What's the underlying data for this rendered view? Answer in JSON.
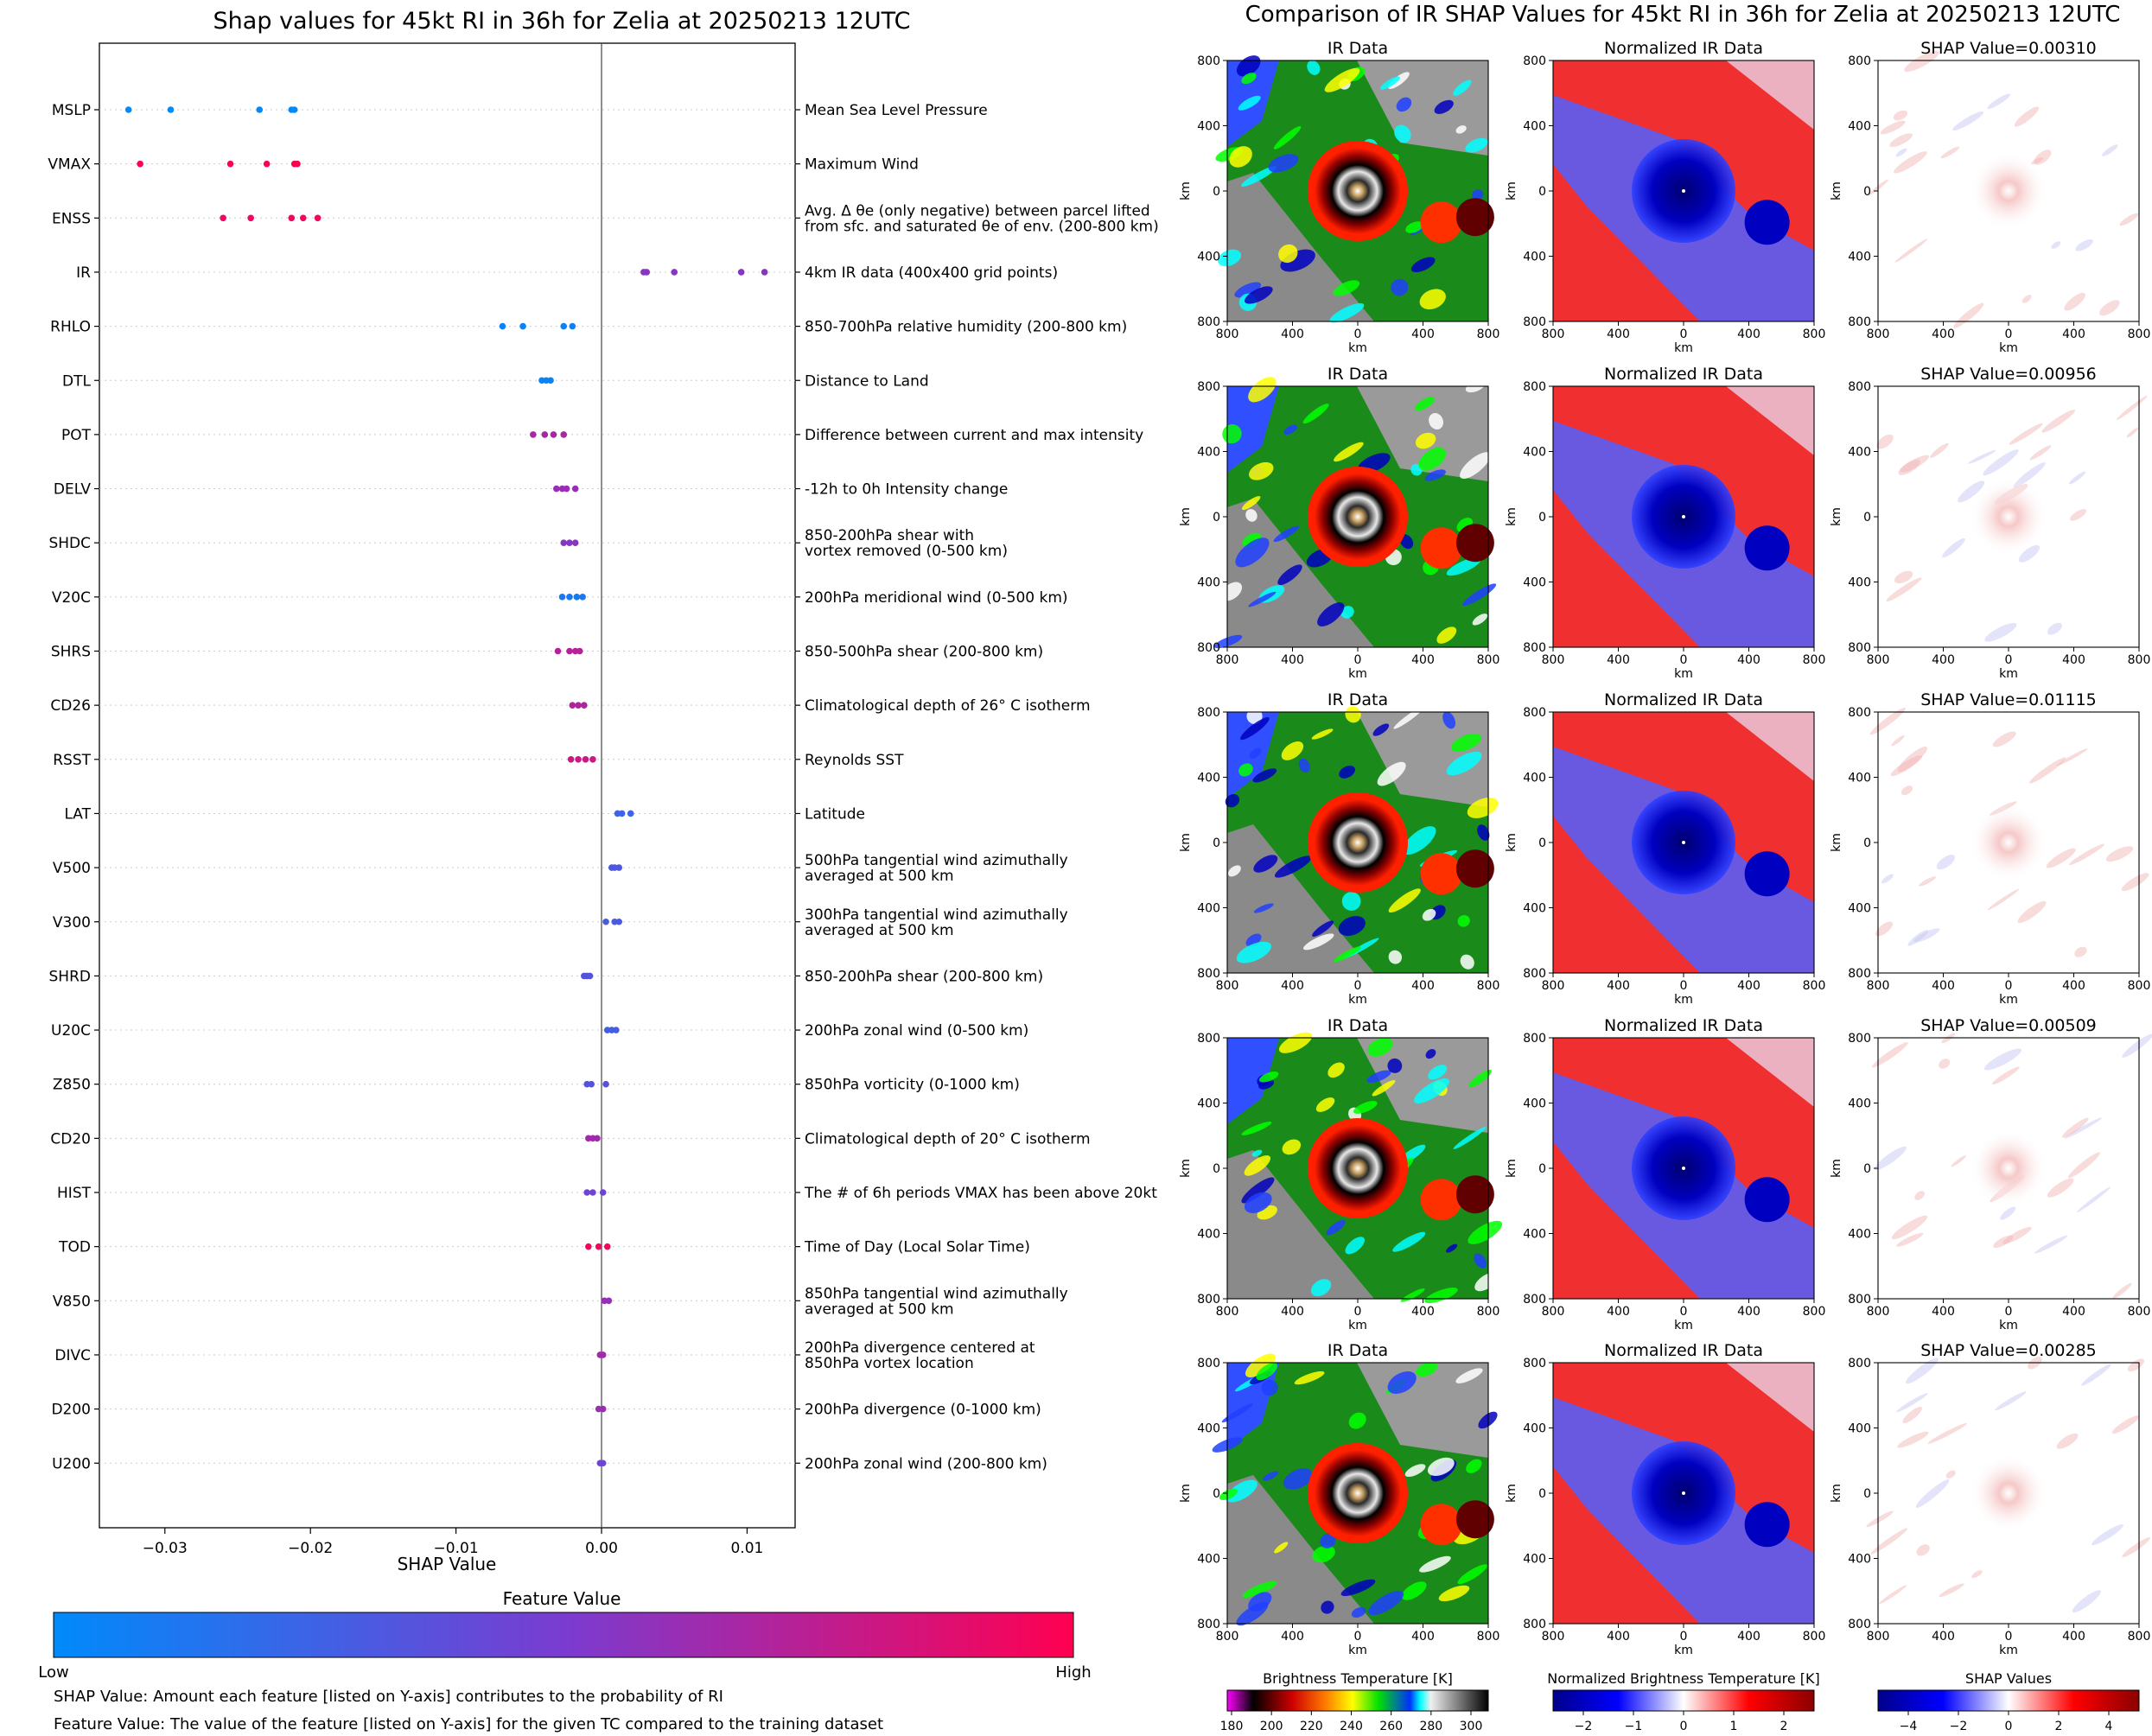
{
  "left_title": "Shap values for 45kt RI in 36h for Zelia at 20250213 12UTC",
  "right_title": "Comparison of IR SHAP Values for 45kt RI in 36h for Zelia at 20250213 12UTC",
  "chart_data": [
    {
      "type": "scatter",
      "title": "Shap values for 45kt RI in 36h for Zelia at 20250213 12UTC",
      "xlabel": "SHAP Value",
      "xlim": [
        -0.0345,
        0.0133
      ],
      "xticks": [
        -0.03,
        -0.02,
        -0.01,
        0.0,
        0.01
      ],
      "xtick_labels": [
        "−0.03",
        "−0.02",
        "−0.01",
        "0.00",
        "0.01"
      ],
      "grid": "horizontal dotted lines at each feature",
      "colorbar_title": "Feature Value",
      "colorbar_low": "Low",
      "colorbar_high": "High",
      "colormap": [
        "#008afb",
        "#7a3cd0",
        "#ff0051"
      ],
      "features": [
        {
          "code": "MSLP",
          "desc": [
            "Mean Sea Level Pressure"
          ],
          "shap": [
            -0.0325,
            -0.0296,
            -0.0235,
            -0.0213,
            -0.0211
          ],
          "fv": [
            0.0,
            0.0,
            0.0,
            0.0,
            0.0
          ]
        },
        {
          "code": "VMAX",
          "desc": [
            "Maximum Wind"
          ],
          "shap": [
            -0.0317,
            -0.0255,
            -0.023,
            -0.0211,
            -0.0209
          ],
          "fv": [
            1.0,
            1.0,
            1.0,
            1.0,
            1.0
          ]
        },
        {
          "code": "ENSS",
          "desc": [
            "Avg. Δ θe (only negative) between parcel lifted",
            "from sfc. and saturated θe of env. (200-800 km)"
          ],
          "shap": [
            -0.026,
            -0.0241,
            -0.0213,
            -0.0205,
            -0.0195
          ],
          "fv": [
            0.95,
            0.95,
            0.95,
            0.95,
            0.95
          ]
        },
        {
          "code": "IR",
          "desc": [
            "4km IR data (400x400 grid points)"
          ],
          "shap": [
            0.0029,
            0.0031,
            0.005,
            0.0096,
            0.0112
          ],
          "fv": [
            0.55,
            0.55,
            0.55,
            0.55,
            0.55
          ]
        },
        {
          "code": "RHLO",
          "desc": [
            "850-700hPa relative humidity (200-800 km)"
          ],
          "shap": [
            -0.0068,
            -0.0054,
            -0.0026,
            -0.002
          ],
          "fv": [
            0.05,
            0.05,
            0.05,
            0.05
          ]
        },
        {
          "code": "DTL",
          "desc": [
            "Distance to Land"
          ],
          "shap": [
            -0.0041,
            -0.0038,
            -0.0035
          ],
          "fv": [
            0.05,
            0.05,
            0.05
          ]
        },
        {
          "code": "POT",
          "desc": [
            "Difference between current and max intensity"
          ],
          "shap": [
            -0.0047,
            -0.0039,
            -0.0033,
            -0.0026
          ],
          "fv": [
            0.68,
            0.68,
            0.68,
            0.68
          ]
        },
        {
          "code": "DELV",
          "desc": [
            "-12h to 0h Intensity change"
          ],
          "shap": [
            -0.0031,
            -0.0027,
            -0.0024,
            -0.0018
          ],
          "fv": [
            0.62,
            0.62,
            0.62,
            0.62
          ]
        },
        {
          "code": "SHDC",
          "desc": [
            "850-200hPa shear with",
            "vortex removed (0-500 km)"
          ],
          "shap": [
            -0.0026,
            -0.0022,
            -0.0018
          ],
          "fv": [
            0.55,
            0.55,
            0.55
          ]
        },
        {
          "code": "V20C",
          "desc": [
            "200hPa meridional wind (0-500 km)"
          ],
          "shap": [
            -0.0027,
            -0.0022,
            -0.0017,
            -0.0013
          ],
          "fv": [
            0.1,
            0.1,
            0.1,
            0.1
          ]
        },
        {
          "code": "SHRS",
          "desc": [
            "850-500hPa shear (200-800 km)"
          ],
          "shap": [
            -0.003,
            -0.0022,
            -0.0018,
            -0.0015
          ],
          "fv": [
            0.72,
            0.72,
            0.72,
            0.72
          ]
        },
        {
          "code": "CD26",
          "desc": [
            "Climatological depth of 26° C isotherm"
          ],
          "shap": [
            -0.002,
            -0.0016,
            -0.0012
          ],
          "fv": [
            0.7,
            0.7,
            0.7
          ]
        },
        {
          "code": "RSST",
          "desc": [
            "Reynolds SST"
          ],
          "shap": [
            -0.0021,
            -0.0016,
            -0.0011,
            -0.0006
          ],
          "fv": [
            0.8,
            0.8,
            0.8,
            0.8
          ]
        },
        {
          "code": "LAT",
          "desc": [
            "Latitude"
          ],
          "shap": [
            0.0011,
            0.0014,
            0.002
          ],
          "fv": [
            0.25,
            0.25,
            0.25
          ]
        },
        {
          "code": "V500",
          "desc": [
            "500hPa tangential wind azimuthally",
            "averaged at 500 km"
          ],
          "shap": [
            0.0007,
            0.0009,
            0.0012
          ],
          "fv": [
            0.32,
            0.32,
            0.32
          ]
        },
        {
          "code": "V300",
          "desc": [
            "300hPa tangential wind azimuthally",
            "averaged at 500 km"
          ],
          "shap": [
            0.0003,
            0.0009,
            0.0012
          ],
          "fv": [
            0.3,
            0.3,
            0.3
          ]
        },
        {
          "code": "SHRD",
          "desc": [
            "850-200hPa shear (200-800 km)"
          ],
          "shap": [
            -0.0012,
            -0.001,
            -0.0008
          ],
          "fv": [
            0.35,
            0.35,
            0.35
          ]
        },
        {
          "code": "U20C",
          "desc": [
            "200hPa zonal wind (0-500 km)"
          ],
          "shap": [
            0.0004,
            0.0007,
            0.001
          ],
          "fv": [
            0.28,
            0.28,
            0.28
          ]
        },
        {
          "code": "Z850",
          "desc": [
            "850hPa vorticity (0-1000 km)"
          ],
          "shap": [
            -0.001,
            -0.0007,
            0.0003
          ],
          "fv": [
            0.35,
            0.35,
            0.35
          ]
        },
        {
          "code": "CD20",
          "desc": [
            "Climatological depth of 20° C isotherm"
          ],
          "shap": [
            -0.0009,
            -0.0006,
            -0.0003
          ],
          "fv": [
            0.65,
            0.65,
            0.65
          ]
        },
        {
          "code": "HIST",
          "desc": [
            "The # of 6h periods VMAX has been above 20kt"
          ],
          "shap": [
            -0.001,
            -0.0006,
            0.0001
          ],
          "fv": [
            0.45,
            0.45,
            0.45
          ]
        },
        {
          "code": "TOD",
          "desc": [
            "Time of Day (Local Solar Time)"
          ],
          "shap": [
            -0.0009,
            -0.0002,
            0.0004
          ],
          "fv": [
            0.95,
            0.95,
            0.95
          ]
        },
        {
          "code": "V850",
          "desc": [
            "850hPa tangential wind azimuthally",
            "averaged at 500 km"
          ],
          "shap": [
            0.0002,
            0.0005
          ],
          "fv": [
            0.6,
            0.6
          ]
        },
        {
          "code": "DIVC",
          "desc": [
            "200hPa divergence centered at",
            "850hPa vortex location"
          ],
          "shap": [
            -0.0001,
            0.0001
          ],
          "fv": [
            0.65,
            0.65
          ]
        },
        {
          "code": "D200",
          "desc": [
            "200hPa divergence (0-1000 km)"
          ],
          "shap": [
            -0.0002,
            0.0001
          ],
          "fv": [
            0.62,
            0.62
          ]
        },
        {
          "code": "U200",
          "desc": [
            "200hPa zonal wind (200-800 km)"
          ],
          "shap": [
            -0.0001,
            0.0001
          ],
          "fv": [
            0.45,
            0.45
          ]
        }
      ]
    },
    {
      "type": "heatmap",
      "title": "Comparison of IR SHAP Values for 45kt RI in 36h for Zelia at 20250213 12UTC",
      "panel_titles": [
        "IR Data",
        "Normalized IR Data"
      ],
      "shap_values": [
        "0.00310",
        "0.00956",
        "0.01115",
        "0.00509",
        "0.00285"
      ],
      "shap_title_prefix": "SHAP Value=",
      "axis_label": "km",
      "axis_ticks": [
        "800",
        "400",
        "0",
        "400",
        "800"
      ],
      "colorbars": [
        {
          "title": "Brightness Temperature [K]",
          "ticks": [
            "180",
            "200",
            "220",
            "240",
            "260",
            "280",
            "300"
          ],
          "colors": [
            "#ff00ff",
            "#000000",
            "#ff0000",
            "#ffff00",
            "#00ff00",
            "#0000ff",
            "#00ffff",
            "#ffffff",
            "#000000"
          ]
        },
        {
          "title": "Normalized Brightness Temperature [K]",
          "ticks": [
            "−2",
            "−1",
            "0",
            "1",
            "2"
          ],
          "colors": [
            "#00008b",
            "#0000ff",
            "#ffffff",
            "#ff0000",
            "#8b0000"
          ]
        },
        {
          "title": "SHAP Values",
          "ticks": [
            "−4",
            "−2",
            "0",
            "2",
            "4"
          ],
          "offset": "1e−5",
          "colors": [
            "#00008b",
            "#0000ff",
            "#ffffff",
            "#ff0000",
            "#8b0000"
          ]
        }
      ]
    }
  ],
  "footnotes": [
    "SHAP Value: Amount each feature [listed on Y-axis] contributes to the probability of RI",
    "Feature Value: The value of the feature [listed on Y-axis] for the given TC compared to the training dataset"
  ]
}
